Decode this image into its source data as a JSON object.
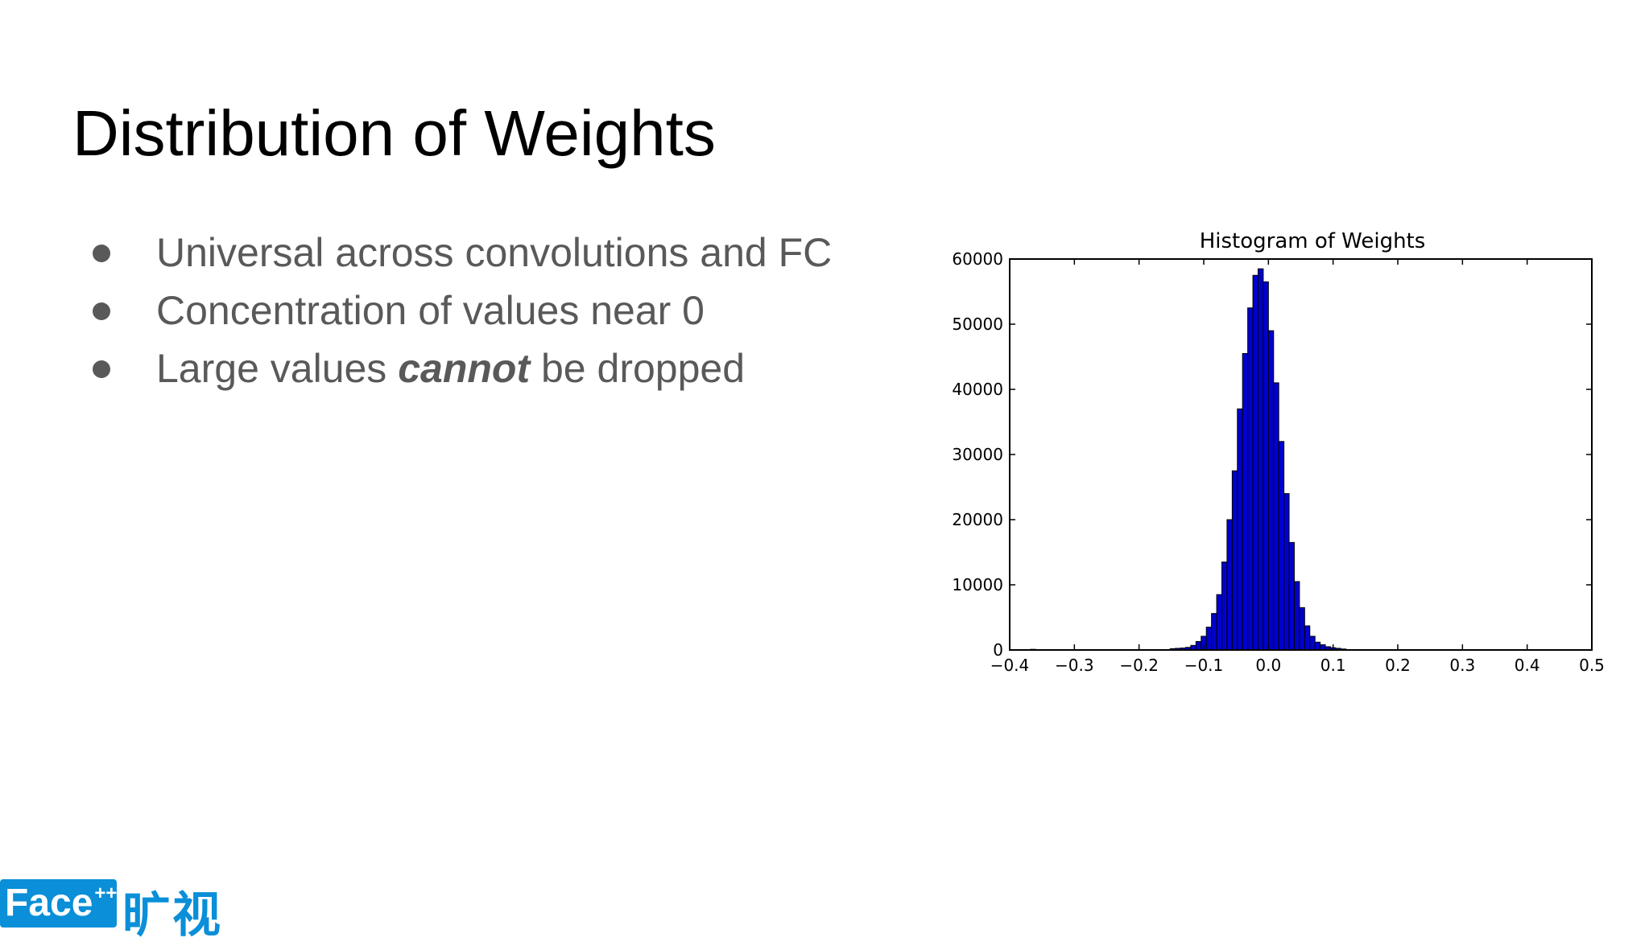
{
  "slide": {
    "title": "Distribution of Weights",
    "bullets": [
      {
        "text": "Universal across convolutions and FC"
      },
      {
        "text": "Concentration of values near 0"
      },
      {
        "pre": "Large values ",
        "emph": "cannot",
        "post": " be dropped"
      }
    ]
  },
  "logo": {
    "text": "Face",
    "sup": "++",
    "cn": "旷视"
  },
  "colors": {
    "bar_fill": "#0000cd",
    "bar_edge": "#000000",
    "text_gray": "#595959",
    "logo_blue": "#0a8fd8"
  },
  "chart_data": {
    "type": "bar",
    "title": "Histogram of Weights",
    "xlim": [
      -0.4,
      0.5
    ],
    "ylim": [
      0,
      60000
    ],
    "xticks": [
      "−0.4",
      "−0.3",
      "−0.2",
      "−0.1",
      "0.0",
      "0.1",
      "0.2",
      "0.3",
      "0.4",
      "0.5"
    ],
    "yticks": [
      "0",
      "10000",
      "20000",
      "30000",
      "40000",
      "50000",
      "60000"
    ],
    "xlabel": "",
    "ylabel": "",
    "grid": false,
    "bin_width": 0.008,
    "bins": [
      {
        "x": -0.368,
        "y": 100
      },
      {
        "x": -0.152,
        "y": 200
      },
      {
        "x": -0.144,
        "y": 250
      },
      {
        "x": -0.136,
        "y": 300
      },
      {
        "x": -0.128,
        "y": 400
      },
      {
        "x": -0.12,
        "y": 700
      },
      {
        "x": -0.112,
        "y": 1300
      },
      {
        "x": -0.104,
        "y": 2100
      },
      {
        "x": -0.096,
        "y": 3500
      },
      {
        "x": -0.088,
        "y": 5600
      },
      {
        "x": -0.08,
        "y": 8500
      },
      {
        "x": -0.072,
        "y": 13500
      },
      {
        "x": -0.064,
        "y": 20000
      },
      {
        "x": -0.056,
        "y": 27500
      },
      {
        "x": -0.048,
        "y": 37000
      },
      {
        "x": -0.04,
        "y": 45500
      },
      {
        "x": -0.032,
        "y": 52500
      },
      {
        "x": -0.024,
        "y": 57500
      },
      {
        "x": -0.016,
        "y": 58500
      },
      {
        "x": -0.008,
        "y": 56500
      },
      {
        "x": 0.0,
        "y": 49000
      },
      {
        "x": 0.008,
        "y": 41000
      },
      {
        "x": 0.016,
        "y": 32000
      },
      {
        "x": 0.024,
        "y": 24000
      },
      {
        "x": 0.032,
        "y": 16500
      },
      {
        "x": 0.04,
        "y": 10500
      },
      {
        "x": 0.048,
        "y": 6500
      },
      {
        "x": 0.056,
        "y": 3700
      },
      {
        "x": 0.064,
        "y": 2100
      },
      {
        "x": 0.072,
        "y": 1200
      },
      {
        "x": 0.08,
        "y": 800
      },
      {
        "x": 0.088,
        "y": 500
      },
      {
        "x": 0.096,
        "y": 350
      },
      {
        "x": 0.104,
        "y": 250
      },
      {
        "x": 0.112,
        "y": 150
      }
    ]
  }
}
